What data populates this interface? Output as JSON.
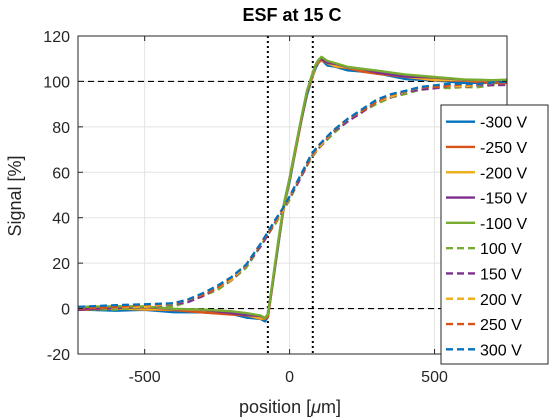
{
  "chart_data": {
    "type": "line",
    "title": "ESF at 15 C",
    "xlabel_prefix": "position [",
    "xlabel_mu": "μ",
    "xlabel_suffix": "m]",
    "ylabel": "Signal [%]",
    "xlim": [
      -730,
      750
    ],
    "ylim": [
      -20,
      120
    ],
    "xticks": [
      -500,
      0,
      500
    ],
    "yticks": [
      -20,
      0,
      20,
      40,
      60,
      80,
      100,
      120
    ],
    "grid": true,
    "legend_position": "right",
    "reference_lines": {
      "horizontal_y": [
        0,
        100
      ],
      "vertical_x": [
        -75,
        80
      ]
    },
    "series": [
      {
        "name": "-300 V",
        "color": "#0072BD",
        "style": "solid",
        "group": "solid"
      },
      {
        "name": "-250 V",
        "color": "#D95319",
        "style": "solid",
        "group": "solid"
      },
      {
        "name": "-200 V",
        "color": "#EDB120",
        "style": "solid",
        "group": "solid"
      },
      {
        "name": "-150 V",
        "color": "#7E2F8E",
        "style": "solid",
        "group": "solid"
      },
      {
        "name": "-100 V",
        "color": "#77AC30",
        "style": "solid",
        "group": "solid"
      },
      {
        "name": "100 V",
        "color": "#77AC30",
        "style": "dashed",
        "group": "dashed"
      },
      {
        "name": "150 V",
        "color": "#7E2F8E",
        "style": "dashed",
        "group": "dashed"
      },
      {
        "name": "200 V",
        "color": "#EDB120",
        "style": "dashed",
        "group": "dashed"
      },
      {
        "name": "250 V",
        "color": "#D95319",
        "style": "dashed",
        "group": "dashed"
      },
      {
        "name": "300 V",
        "color": "#0072BD",
        "style": "dashed",
        "group": "dashed"
      }
    ],
    "curves": {
      "solid": {
        "x": [
          -730,
          -600,
          -500,
          -400,
          -300,
          -200,
          -150,
          -100,
          -85,
          -75,
          -60,
          -40,
          -20,
          0,
          20,
          40,
          60,
          80,
          90,
          100,
          110,
          130,
          160,
          200,
          250,
          300,
          400,
          500,
          600,
          700,
          750
        ],
        "y": [
          0,
          0,
          0,
          -0.5,
          -1,
          -2,
          -3,
          -4,
          -4.5,
          -3,
          10,
          28,
          45,
          57,
          70,
          83,
          95,
          103,
          107,
          109,
          110,
          108,
          107,
          106,
          105,
          104,
          102,
          101,
          100.5,
          100,
          100
        ]
      },
      "dashed": {
        "x": [
          -730,
          -600,
          -500,
          -400,
          -350,
          -300,
          -250,
          -200,
          -150,
          -100,
          -75,
          -50,
          -25,
          0,
          25,
          50,
          75,
          100,
          150,
          200,
          250,
          300,
          350,
          400,
          450,
          500,
          550,
          600,
          650,
          700,
          750
        ],
        "y": [
          0,
          0.5,
          1,
          2,
          3.5,
          6,
          9,
          13,
          19,
          28,
          33,
          38,
          43,
          49,
          55,
          61,
          67,
          71,
          78,
          83,
          87,
          91,
          93.5,
          95.5,
          97,
          97.5,
          98,
          98,
          98.5,
          99,
          99
        ]
      }
    }
  }
}
